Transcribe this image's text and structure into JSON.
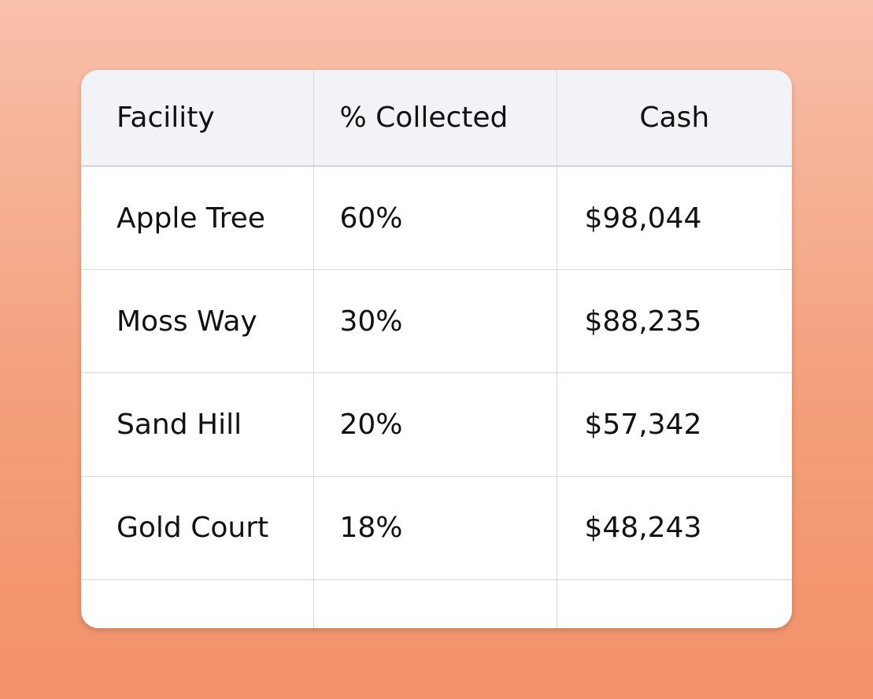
{
  "table": {
    "headers": [
      "Facility",
      "% Collected",
      "Cash"
    ],
    "rows": [
      {
        "facility": "Apple Tree",
        "collected": "60%",
        "cash": "$98,044"
      },
      {
        "facility": "Moss Way",
        "collected": "30%",
        "cash": "$88,235"
      },
      {
        "facility": "Sand Hill",
        "collected": "20%",
        "cash": "$57,342"
      },
      {
        "facility": "Gold Court",
        "collected": "18%",
        "cash": "$48,243"
      }
    ]
  },
  "colors": {
    "background_top": "#f8c0ab",
    "background_bottom": "#f2916a",
    "header_background": "#f1f3f7",
    "card_background": "#ffffff",
    "grid_line": "#d5d8dd",
    "text": "#121212"
  }
}
